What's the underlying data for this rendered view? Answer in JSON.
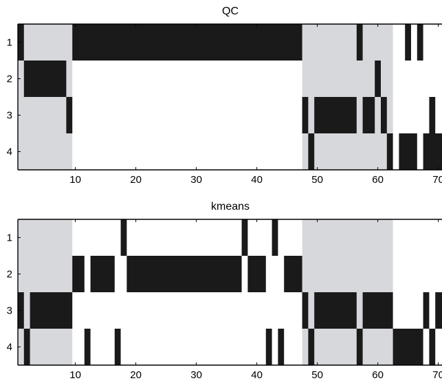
{
  "chart_data": [
    {
      "type": "heatmap",
      "title": "QC",
      "xlabel": "",
      "ylabel": "",
      "rows": [
        1,
        2,
        3,
        4
      ],
      "xlim": [
        0.5,
        71.7
      ],
      "x_ticks": [
        10,
        20,
        30,
        40,
        50,
        60,
        70
      ],
      "y_ticks": [
        1,
        2,
        3,
        4
      ],
      "shaded_columns": [
        [
          1,
          9
        ],
        [
          48,
          62
        ]
      ],
      "assignments": {
        "1": [
          1,
          10,
          11,
          12,
          13,
          14,
          15,
          16,
          17,
          18,
          19,
          20,
          21,
          22,
          23,
          24,
          25,
          26,
          27,
          28,
          29,
          30,
          31,
          32,
          33,
          34,
          35,
          36,
          37,
          38,
          39,
          40,
          41,
          42,
          43,
          44,
          45,
          46,
          47,
          57,
          65,
          67
        ],
        "2": [
          2,
          3,
          4,
          5,
          6,
          7,
          8,
          60
        ],
        "3": [
          9,
          48,
          50,
          51,
          52,
          53,
          54,
          55,
          56,
          58,
          59,
          61,
          69
        ],
        "4": [
          49,
          62,
          64,
          65,
          66,
          68,
          69,
          70,
          71
        ]
      },
      "colors": {
        "background": "#ffffff",
        "cluster": "#1a1a1a",
        "shade": "#d6d8dc"
      }
    },
    {
      "type": "heatmap",
      "title": "kmeans",
      "xlabel": "",
      "ylabel": "",
      "rows": [
        1,
        2,
        3,
        4
      ],
      "xlim": [
        0.5,
        71.7
      ],
      "x_ticks": [
        10,
        20,
        30,
        40,
        50,
        60,
        70
      ],
      "y_ticks": [
        1,
        2,
        3,
        4
      ],
      "shaded_columns": [
        [
          1,
          9
        ],
        [
          48,
          62
        ]
      ],
      "assignments": {
        "1": [
          18,
          38,
          43
        ],
        "2": [
          10,
          11,
          13,
          14,
          15,
          16,
          19,
          20,
          21,
          22,
          23,
          24,
          25,
          26,
          27,
          28,
          29,
          30,
          31,
          32,
          33,
          34,
          35,
          36,
          37,
          39,
          40,
          41,
          45,
          46,
          47
        ],
        "3": [
          1,
          3,
          4,
          5,
          6,
          7,
          8,
          9,
          48,
          50,
          51,
          52,
          53,
          54,
          55,
          56,
          58,
          59,
          60,
          61,
          62,
          68,
          70,
          71
        ],
        "4": [
          2,
          12,
          17,
          42,
          44,
          49,
          57,
          63,
          64,
          65,
          66,
          67,
          69
        ]
      },
      "colors": {
        "background": "#ffffff",
        "cluster": "#1a1a1a",
        "shade": "#d6d8dc"
      }
    }
  ]
}
